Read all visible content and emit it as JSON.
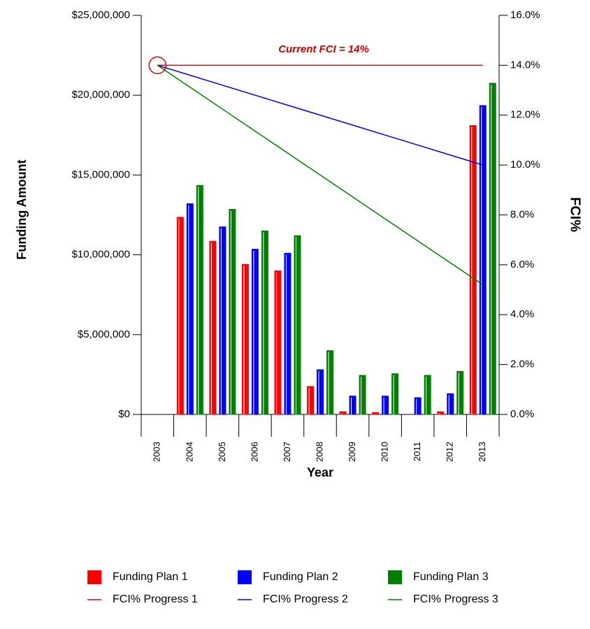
{
  "chart_data": {
    "type": "bar",
    "x_label": "Year",
    "y_label": "Funding Amount",
    "y2_label": "FCI%",
    "annotation": "Current FCI = 14%",
    "categories": [
      "2003",
      "2004",
      "2005",
      "2006",
      "2007",
      "2008",
      "2009",
      "2010",
      "2011",
      "2012",
      "2013"
    ],
    "series": [
      {
        "name": "Funding Plan 1",
        "color": "#ff0000",
        "values": [
          0,
          12350000,
          10850000,
          9400000,
          9000000,
          1750000,
          170000,
          120000,
          0,
          170000,
          18100000
        ]
      },
      {
        "name": "Funding Plan 2",
        "color": "#0000ff",
        "values": [
          0,
          13200000,
          11750000,
          10350000,
          10100000,
          2800000,
          1150000,
          1150000,
          1050000,
          1300000,
          19350000
        ]
      },
      {
        "name": "Funding Plan 3",
        "color": "#008000",
        "values": [
          0,
          14350000,
          12850000,
          11500000,
          11200000,
          4000000,
          2450000,
          2550000,
          2450000,
          2700000,
          20750000
        ]
      },
      {
        "name": "FCI% Progress 1",
        "type": "line",
        "axis": "y2",
        "color": "#e00000",
        "values": [
          14,
          14,
          14,
          14,
          14,
          14,
          14,
          14,
          14,
          14,
          14
        ]
      },
      {
        "name": "FCI% Progress 2",
        "type": "line",
        "axis": "y2",
        "color": "#0000e0",
        "values": [
          14,
          13.6,
          13.2,
          12.8,
          12.4,
          12,
          11.6,
          11.2,
          10.8,
          10.4,
          10
        ]
      },
      {
        "name": "FCI% Progress 3",
        "type": "line",
        "axis": "y2",
        "color": "#008000",
        "values": [
          14,
          13.12,
          12.24,
          11.36,
          10.48,
          9.6,
          8.72,
          7.84,
          6.96,
          6.08,
          5.2
        ]
      }
    ],
    "ylim": [
      0,
      25000000
    ],
    "yticks": [
      {
        "value": 0,
        "label": "$0"
      },
      {
        "value": 5000000,
        "label": "$5,000,000"
      },
      {
        "value": 10000000,
        "label": "$10,000,000"
      },
      {
        "value": 15000000,
        "label": "$15,000,000"
      },
      {
        "value": 20000000,
        "label": "$20,000,000"
      },
      {
        "value": 25000000,
        "label": "$25,000,000"
      }
    ],
    "y2lim": [
      0,
      16
    ],
    "y2ticks": [
      {
        "value": 0,
        "label": "0.0%"
      },
      {
        "value": 2,
        "label": "2.0%"
      },
      {
        "value": 4,
        "label": "4.0%"
      },
      {
        "value": 6,
        "label": "6.0%"
      },
      {
        "value": 8,
        "label": "8.0%"
      },
      {
        "value": 10,
        "label": "10.0%"
      },
      {
        "value": 12,
        "label": "12.0%"
      },
      {
        "value": 14,
        "label": "14.0%"
      },
      {
        "value": 16,
        "label": "16.0%"
      }
    ]
  }
}
